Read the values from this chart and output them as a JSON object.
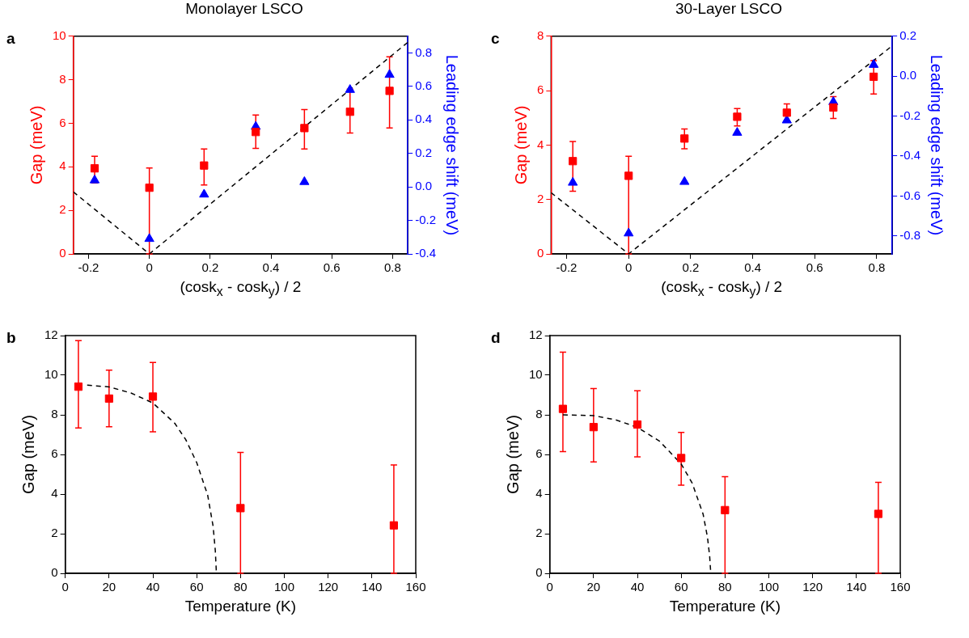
{
  "chart_data": [
    {
      "type": "scatter",
      "title": "Monolayer LSCO",
      "annotations": [
        "a"
      ],
      "xlabel": "(cosk$_{x}$ - cosk$_{y}$) / 2",
      "ylabel": "Gap (meV)",
      "y2label": "Leading edge shift (meV)",
      "xlim": [
        -0.25,
        0.85
      ],
      "xticks": [
        -0.2,
        0,
        0.2,
        0.4,
        0.6,
        0.8
      ],
      "ylim": [
        0,
        10
      ],
      "yticks": [
        0,
        2,
        4,
        6,
        8,
        10
      ],
      "y2lim": [
        -0.4,
        0.9
      ],
      "y2ticks": [
        -0.4,
        -0.2,
        {
          "value": 0,
          "label": "0.0"
        },
        0.2,
        0.4,
        0.6,
        0.8
      ],
      "grid": false,
      "legend": false,
      "series": [
        {
          "type": "scatter",
          "color": "#ff0000",
          "marker": "square",
          "x": [
            -0.18,
            0,
            0.18,
            0.35,
            0.51,
            0.66,
            0.79
          ],
          "values": [
            3.93,
            3.04,
            4.06,
            5.6,
            5.78,
            6.53,
            7.49
          ],
          "errors": [
            [
              3.26,
              4.49
            ],
            [
              0,
              3.95
            ],
            [
              3.17,
              4.82
            ],
            [
              4.85,
              6.38
            ],
            [
              4.82,
              6.63
            ],
            [
              5.55,
              7.57
            ],
            [
              5.79,
              9.05
            ]
          ]
        },
        {
          "type": "scatter",
          "axis": "y2",
          "color": "#0000ff",
          "marker": "triangle",
          "x": [
            -0.18,
            0,
            0.18,
            0.35,
            0.51,
            0.66,
            0.79
          ],
          "values": [
            0.04,
            -0.31,
            -0.045,
            0.36,
            0.03,
            0.58,
            0.67
          ]
        },
        {
          "type": "line",
          "color": "#000000",
          "marker": "none",
          "line_style": "dashed",
          "x": [
            -0.25,
            0,
            0.85
          ],
          "values": [
            2.85,
            0,
            9.72
          ]
        }
      ]
    },
    {
      "type": "scatter",
      "title": "30-Layer LSCO",
      "annotations": [
        "c"
      ],
      "xlabel": "(cosk$_{x}$ - cosk$_{y}$) / 2",
      "ylabel": "Gap (meV)",
      "y2label": "Leading edge shift (meV)",
      "xlim": [
        -0.25,
        0.85
      ],
      "xticks": [
        -0.2,
        0,
        0.2,
        0.4,
        0.6,
        0.8
      ],
      "ylim": [
        0,
        8
      ],
      "yticks": [
        0,
        2,
        4,
        6,
        8
      ],
      "y2lim": [
        -0.89,
        0.2
      ],
      "y2ticks": [
        -0.8,
        -0.6,
        -0.4,
        -0.2,
        {
          "value": 0,
          "label": "0.0"
        },
        0.2
      ],
      "grid": false,
      "legend": false,
      "series": [
        {
          "type": "scatter",
          "color": "#ff0000",
          "marker": "square",
          "x": [
            -0.18,
            0,
            0.18,
            0.35,
            0.51,
            0.66,
            0.79
          ],
          "values": [
            3.41,
            2.87,
            4.24,
            5.04,
            5.19,
            5.38,
            6.51
          ],
          "errors": [
            [
              2.3,
              4.13
            ],
            [
              0,
              3.59
            ],
            [
              3.86,
              4.59
            ],
            [
              4.7,
              5.34
            ],
            [
              4.89,
              5.51
            ],
            [
              4.98,
              5.78
            ],
            [
              5.88,
              7.1
            ]
          ]
        },
        {
          "type": "scatter",
          "axis": "y2",
          "color": "#0000ff",
          "marker": "triangle",
          "x": [
            -0.18,
            0,
            0.18,
            0.35,
            0.51,
            0.66,
            0.79
          ],
          "values": [
            -0.533,
            -0.787,
            -0.529,
            -0.283,
            -0.221,
            -0.129,
            0.057
          ]
        },
        {
          "type": "line",
          "color": "#000000",
          "marker": "none",
          "line_style": "dashed",
          "x": [
            -0.25,
            0,
            0.85
          ],
          "values": [
            2.25,
            0,
            7.65
          ]
        }
      ]
    },
    {
      "type": "scatter",
      "annotations": [
        "b"
      ],
      "xlabel": "Temperature (K)",
      "ylabel": "Gap (meV)",
      "xlim": [
        0,
        160
      ],
      "xticks": [
        0,
        20,
        40,
        60,
        80,
        100,
        120,
        140,
        160
      ],
      "ylim": [
        0,
        12
      ],
      "yticks": [
        0,
        2,
        4,
        6,
        8,
        10,
        12
      ],
      "grid": false,
      "legend": false,
      "series": [
        {
          "type": "scatter",
          "color": "#ff0000",
          "marker": "square",
          "x": [
            6,
            20,
            40,
            80,
            150
          ],
          "values": [
            9.42,
            8.82,
            8.92,
            3.29,
            2.42
          ],
          "errors": [
            [
              7.34,
              11.75
            ],
            [
              7.4,
              10.26
            ],
            [
              7.14,
              10.64
            ],
            [
              0,
              6.1
            ],
            [
              0,
              5.47
            ]
          ]
        },
        {
          "type": "line",
          "color": "#000000",
          "marker": "none",
          "line_style": "dashed",
          "x": [
            10,
            20,
            30,
            40,
            50,
            55,
            60,
            65,
            67.5,
            68.5,
            69
          ],
          "values": [
            9.5,
            9.41,
            9.1,
            8.6,
            7.57,
            6.75,
            5.59,
            3.95,
            2.37,
            1.14,
            0
          ]
        }
      ]
    },
    {
      "type": "scatter",
      "annotations": [
        "d"
      ],
      "xlabel": "Temperature (K)",
      "ylabel": "Gap (meV)",
      "xlim": [
        0,
        160
      ],
      "xticks": [
        0,
        20,
        40,
        60,
        80,
        100,
        120,
        140,
        160
      ],
      "ylim": [
        0,
        12
      ],
      "yticks": [
        0,
        2,
        4,
        6,
        8,
        10,
        12
      ],
      "grid": false,
      "legend": false,
      "series": [
        {
          "type": "scatter",
          "color": "#ff0000",
          "marker": "square",
          "x": [
            6,
            20,
            40,
            60,
            80,
            150
          ],
          "values": [
            8.3,
            7.38,
            7.51,
            5.82,
            3.19,
            3.0
          ],
          "errors": [
            [
              6.14,
              11.16
            ],
            [
              5.62,
              9.33
            ],
            [
              5.88,
              9.21
            ],
            [
              4.45,
              7.11
            ],
            [
              0,
              4.88
            ],
            [
              0,
              4.59
            ]
          ]
        },
        {
          "type": "line",
          "color": "#000000",
          "marker": "none",
          "line_style": "dashed",
          "x": [
            6,
            20,
            30,
            40,
            50,
            60,
            65,
            70,
            72,
            73,
            73.5
          ],
          "values": [
            8.0,
            7.96,
            7.75,
            7.37,
            6.68,
            5.52,
            4.56,
            2.99,
            1.82,
            0.86,
            0
          ]
        }
      ]
    }
  ]
}
